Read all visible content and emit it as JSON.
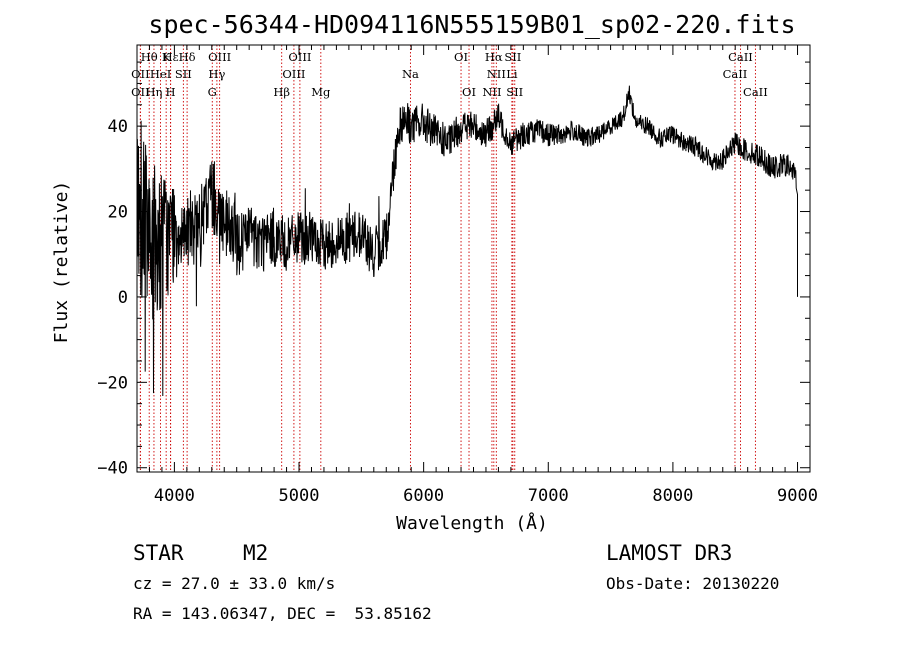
{
  "chart_data": {
    "type": "line",
    "title": "spec-56344-HD094116N555159B01_sp02-220.fits",
    "xlabel": "Wavelength (Å)",
    "ylabel": "Flux (relative)",
    "xlim": [
      3700,
      9100
    ],
    "ylim": [
      -41,
      59
    ],
    "x_ticks": [
      4000,
      5000,
      6000,
      7000,
      8000,
      9000
    ],
    "y_ticks": [
      -40,
      -20,
      0,
      20,
      40
    ],
    "grid": false,
    "series_color": "#000000",
    "marker_color": "#cc0000",
    "spectrum_envelope": {
      "x": [
        3700,
        3750,
        3800,
        3850,
        3900,
        3950,
        4000,
        4100,
        4200,
        4300,
        4400,
        4500,
        4600,
        4700,
        4800,
        4900,
        5000,
        5100,
        5200,
        5300,
        5400,
        5500,
        5600,
        5700,
        5750,
        5800,
        5850,
        5900,
        6000,
        6100,
        6200,
        6300,
        6400,
        6500,
        6600,
        6700,
        6800,
        6900,
        7000,
        7100,
        7200,
        7300,
        7400,
        7500,
        7600,
        7650,
        7700,
        7800,
        7900,
        8000,
        8100,
        8200,
        8300,
        8400,
        8500,
        8600,
        8700,
        8800,
        8900,
        8950,
        9000
      ],
      "y": [
        25,
        18,
        10,
        12,
        15,
        14,
        16,
        17,
        15,
        25,
        17,
        13,
        14,
        13,
        14,
        12,
        14,
        13,
        12,
        13,
        14,
        15,
        10,
        14,
        28,
        40,
        42,
        40,
        41,
        38,
        36,
        40,
        40,
        38,
        42,
        36,
        38,
        39,
        38,
        38,
        39,
        37,
        38,
        40,
        42,
        48,
        41,
        40,
        37,
        38,
        36,
        35,
        32,
        32,
        36,
        34,
        33,
        30,
        31,
        30,
        27
      ]
    },
    "noise_amplitude": {
      "x": [
        3700,
        3800,
        3900,
        4100,
        4400,
        5000,
        5700,
        5800,
        6200,
        6800,
        7500,
        8500,
        9000
      ],
      "y": [
        20,
        24,
        16,
        10,
        9,
        6,
        6,
        5,
        4,
        3,
        2,
        2.5,
        3
      ]
    },
    "spectral_lines": [
      {
        "label": "Hε",
        "wavelength": 3970,
        "row": 0
      },
      {
        "label": "OII",
        "wavelength": 3727,
        "row": 1
      },
      {
        "label": "OII",
        "wavelength": 3727,
        "row": 2
      },
      {
        "label": "Hθ",
        "wavelength": 3798,
        "row": 0
      },
      {
        "label": "Hη",
        "wavelength": 3836,
        "row": 2
      },
      {
        "label": "HeI",
        "wavelength": 3889,
        "row": 1
      },
      {
        "label": "K",
        "wavelength": 3934,
        "row": 0
      },
      {
        "label": "H",
        "wavelength": 3969,
        "row": 2
      },
      {
        "label": "SII",
        "wavelength": 4072,
        "row": 1
      },
      {
        "label": "Hδ",
        "wavelength": 4102,
        "row": 0
      },
      {
        "label": "OIII",
        "wavelength": 4363,
        "row": 0
      },
      {
        "label": "Hγ",
        "wavelength": 4341,
        "row": 1
      },
      {
        "label": "G",
        "wavelength": 4304,
        "row": 2
      },
      {
        "label": "Hβ",
        "wavelength": 4861,
        "row": 2
      },
      {
        "label": "OIII",
        "wavelength": 4959,
        "row": 1
      },
      {
        "label": "OIII",
        "wavelength": 5007,
        "row": 0
      },
      {
        "label": "Mg",
        "wavelength": 5175,
        "row": 2
      },
      {
        "label": "Na",
        "wavelength": 5894,
        "row": 1
      },
      {
        "label": "OI",
        "wavelength": 6300,
        "row": 0
      },
      {
        "label": "OI",
        "wavelength": 6364,
        "row": 2
      },
      {
        "label": "NII",
        "wavelength": 6548,
        "row": 2
      },
      {
        "label": "Hα",
        "wavelength": 6563,
        "row": 0
      },
      {
        "label": "NII",
        "wavelength": 6583,
        "row": 1
      },
      {
        "label": "Li",
        "wavelength": 6708,
        "row": 1
      },
      {
        "label": "SII",
        "wavelength": 6716,
        "row": 0
      },
      {
        "label": "SII",
        "wavelength": 6731,
        "row": 2
      },
      {
        "label": "CaII",
        "wavelength": 8498,
        "row": 1
      },
      {
        "label": "CaII",
        "wavelength": 8542,
        "row": 0
      },
      {
        "label": "CaII",
        "wavelength": 8662,
        "row": 2
      }
    ]
  },
  "info": {
    "class": "STAR",
    "subclass": "M2",
    "survey": "LAMOST DR3",
    "cz": "cz = 27.0 ± 33.0 km/s",
    "obs_date": "Obs-Date: 20130220",
    "radec": "RA = 143.06347, DEC =  53.85162"
  }
}
